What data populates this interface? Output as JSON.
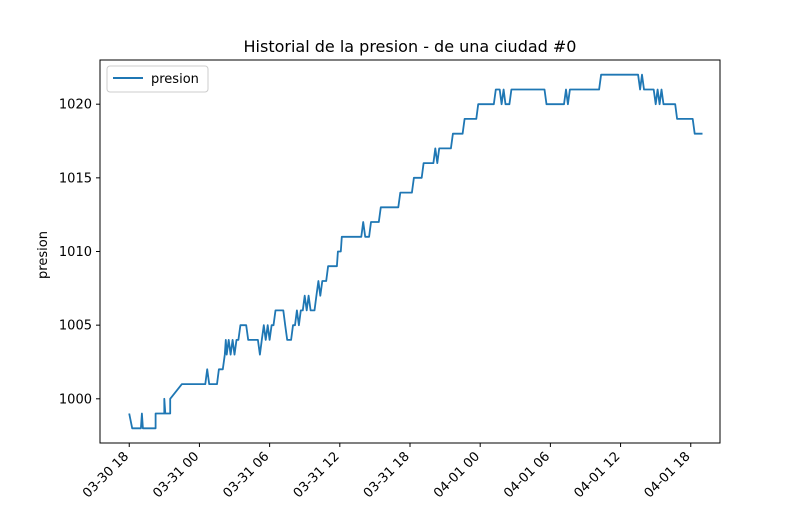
{
  "chart_data": {
    "type": "line",
    "title": "Historial de la presion - de una ciudad #0",
    "xlabel": "",
    "ylabel": "presion",
    "legend_position": "top-left",
    "grid": false,
    "x_type": "datetime",
    "xlim": [
      "2021-03-30 15:30",
      "2021-04-01 20:30"
    ],
    "ylim": [
      997,
      1023
    ],
    "x_ticks": [
      "2021-03-30 18:00",
      "2021-03-31 00:00",
      "2021-03-31 06:00",
      "2021-03-31 12:00",
      "2021-03-31 18:00",
      "2021-04-01 00:00",
      "2021-04-01 06:00",
      "2021-04-01 12:00",
      "2021-04-01 18:00"
    ],
    "x_tick_labels": [
      "03-30 18",
      "03-31 00",
      "03-31 06",
      "03-31 12",
      "03-31 18",
      "04-01 00",
      "04-01 06",
      "04-01 12",
      "04-01 18"
    ],
    "y_ticks": [
      1000,
      1005,
      1010,
      1015,
      1020
    ],
    "series": [
      {
        "name": "presion",
        "color": "#1f77b4",
        "points": [
          [
            "2021-03-30 18:00",
            999
          ],
          [
            "2021-03-30 18:15",
            998
          ],
          [
            "2021-03-30 19:00",
            998
          ],
          [
            "2021-03-30 19:05",
            999
          ],
          [
            "2021-03-30 19:10",
            998
          ],
          [
            "2021-03-30 20:15",
            998
          ],
          [
            "2021-03-30 20:15",
            999
          ],
          [
            "2021-03-30 21:00",
            999
          ],
          [
            "2021-03-30 21:00",
            1000
          ],
          [
            "2021-03-30 21:05",
            999
          ],
          [
            "2021-03-30 21:30",
            999
          ],
          [
            "2021-03-30 21:30",
            1000
          ],
          [
            "2021-03-30 22:30",
            1001
          ],
          [
            "2021-03-31 00:30",
            1001
          ],
          [
            "2021-03-31 00:40",
            1002
          ],
          [
            "2021-03-31 00:50",
            1001
          ],
          [
            "2021-03-31 01:30",
            1001
          ],
          [
            "2021-03-31 01:40",
            1002
          ],
          [
            "2021-03-31 02:00",
            1002
          ],
          [
            "2021-03-31 02:10",
            1003
          ],
          [
            "2021-03-31 02:15",
            1004
          ],
          [
            "2021-03-31 02:20",
            1003
          ],
          [
            "2021-03-31 02:30",
            1004
          ],
          [
            "2021-03-31 02:40",
            1003
          ],
          [
            "2021-03-31 02:50",
            1004
          ],
          [
            "2021-03-31 03:00",
            1003
          ],
          [
            "2021-03-31 03:10",
            1004
          ],
          [
            "2021-03-31 03:20",
            1004
          ],
          [
            "2021-03-31 03:30",
            1005
          ],
          [
            "2021-03-31 04:00",
            1005
          ],
          [
            "2021-03-31 04:10",
            1004
          ],
          [
            "2021-03-31 05:00",
            1004
          ],
          [
            "2021-03-31 05:10",
            1003
          ],
          [
            "2021-03-31 05:20",
            1004
          ],
          [
            "2021-03-31 05:30",
            1005
          ],
          [
            "2021-03-31 05:40",
            1004
          ],
          [
            "2021-03-31 05:50",
            1005
          ],
          [
            "2021-03-31 06:00",
            1004
          ],
          [
            "2021-03-31 06:10",
            1005
          ],
          [
            "2021-03-31 06:20",
            1005
          ],
          [
            "2021-03-31 06:30",
            1006
          ],
          [
            "2021-03-31 07:10",
            1006
          ],
          [
            "2021-03-31 07:20",
            1005
          ],
          [
            "2021-03-31 07:30",
            1004
          ],
          [
            "2021-03-31 07:50",
            1004
          ],
          [
            "2021-03-31 08:00",
            1005
          ],
          [
            "2021-03-31 08:10",
            1005
          ],
          [
            "2021-03-31 08:20",
            1006
          ],
          [
            "2021-03-31 08:30",
            1005
          ],
          [
            "2021-03-31 08:40",
            1006
          ],
          [
            "2021-03-31 08:50",
            1006
          ],
          [
            "2021-03-31 09:00",
            1007
          ],
          [
            "2021-03-31 09:10",
            1006
          ],
          [
            "2021-03-31 09:20",
            1007
          ],
          [
            "2021-03-31 09:30",
            1006
          ],
          [
            "2021-03-31 09:50",
            1006
          ],
          [
            "2021-03-31 10:00",
            1007
          ],
          [
            "2021-03-31 10:10",
            1008
          ],
          [
            "2021-03-31 10:20",
            1007
          ],
          [
            "2021-03-31 10:30",
            1008
          ],
          [
            "2021-03-31 10:50",
            1008
          ],
          [
            "2021-03-31 11:00",
            1009
          ],
          [
            "2021-03-31 11:45",
            1009
          ],
          [
            "2021-03-31 11:50",
            1010
          ],
          [
            "2021-03-31 12:05",
            1010
          ],
          [
            "2021-03-31 12:10",
            1011
          ],
          [
            "2021-03-31 13:50",
            1011
          ],
          [
            "2021-03-31 14:00",
            1012
          ],
          [
            "2021-03-31 14:10",
            1011
          ],
          [
            "2021-03-31 14:30",
            1011
          ],
          [
            "2021-03-31 14:40",
            1012
          ],
          [
            "2021-03-31 15:20",
            1012
          ],
          [
            "2021-03-31 15:30",
            1013
          ],
          [
            "2021-03-31 17:00",
            1013
          ],
          [
            "2021-03-31 17:10",
            1014
          ],
          [
            "2021-03-31 18:10",
            1014
          ],
          [
            "2021-03-31 18:20",
            1015
          ],
          [
            "2021-03-31 19:00",
            1015
          ],
          [
            "2021-03-31 19:10",
            1016
          ],
          [
            "2021-03-31 20:00",
            1016
          ],
          [
            "2021-03-31 20:10",
            1017
          ],
          [
            "2021-03-31 20:20",
            1016
          ],
          [
            "2021-03-31 20:30",
            1017
          ],
          [
            "2021-03-31 21:30",
            1017
          ],
          [
            "2021-03-31 21:40",
            1018
          ],
          [
            "2021-03-31 22:30",
            1018
          ],
          [
            "2021-03-31 22:40",
            1019
          ],
          [
            "2021-03-31 23:40",
            1019
          ],
          [
            "2021-03-31 23:50",
            1020
          ],
          [
            "2021-04-01 01:10",
            1020
          ],
          [
            "2021-04-01 01:20",
            1021
          ],
          [
            "2021-04-01 01:40",
            1021
          ],
          [
            "2021-04-01 01:50",
            1020
          ],
          [
            "2021-04-01 02:00",
            1021
          ],
          [
            "2021-04-01 02:10",
            1020
          ],
          [
            "2021-04-01 02:30",
            1020
          ],
          [
            "2021-04-01 02:40",
            1021
          ],
          [
            "2021-04-01 05:30",
            1021
          ],
          [
            "2021-04-01 05:40",
            1020
          ],
          [
            "2021-04-01 07:10",
            1020
          ],
          [
            "2021-04-01 07:20",
            1021
          ],
          [
            "2021-04-01 07:30",
            1020
          ],
          [
            "2021-04-01 07:40",
            1021
          ],
          [
            "2021-04-01 10:10",
            1021
          ],
          [
            "2021-04-01 10:20",
            1022
          ],
          [
            "2021-04-01 13:30",
            1022
          ],
          [
            "2021-04-01 13:40",
            1021
          ],
          [
            "2021-04-01 13:50",
            1022
          ],
          [
            "2021-04-01 14:00",
            1021
          ],
          [
            "2021-04-01 14:50",
            1021
          ],
          [
            "2021-04-01 15:00",
            1020
          ],
          [
            "2021-04-01 15:10",
            1021
          ],
          [
            "2021-04-01 15:20",
            1020
          ],
          [
            "2021-04-01 15:30",
            1021
          ],
          [
            "2021-04-01 15:40",
            1020
          ],
          [
            "2021-04-01 16:40",
            1020
          ],
          [
            "2021-04-01 16:50",
            1019
          ],
          [
            "2021-04-01 18:10",
            1019
          ],
          [
            "2021-04-01 18:20",
            1018
          ],
          [
            "2021-04-01 19:00",
            1018
          ]
        ]
      }
    ]
  }
}
